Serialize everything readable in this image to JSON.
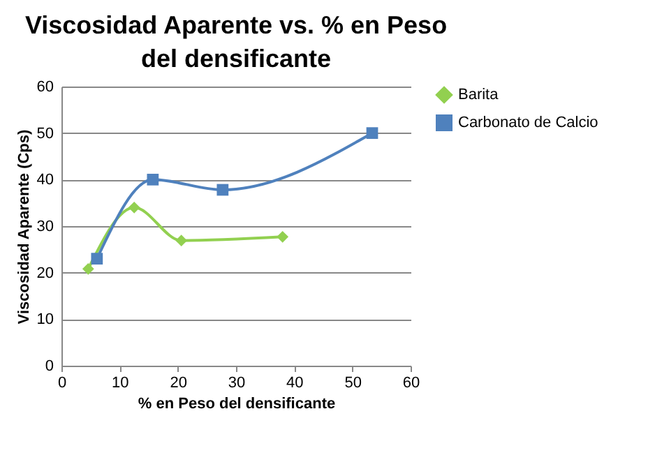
{
  "chart_data": {
    "type": "line",
    "title": "Viscosidad Aparente vs. % en Peso del densificante",
    "xlabel": "% en Peso del densificante",
    "ylabel": "Viscosidad Aparente (Cps)",
    "xlim": [
      0,
      60
    ],
    "xticks": [
      0,
      10,
      20,
      30,
      40,
      50,
      60
    ],
    "ylim": [
      0,
      60
    ],
    "yticks": [
      0,
      10,
      20,
      30,
      40,
      50,
      60
    ],
    "grid": "y",
    "legend": "right",
    "series": [
      {
        "name": "Barita",
        "color": "#92d050",
        "marker": "diamond",
        "x": [
          4.6,
          12.5,
          20.6,
          38
        ],
        "values": [
          20.8,
          34,
          26.9,
          27.7
        ]
      },
      {
        "name": "Carbonato de Calcio",
        "color": "#4f81bd",
        "marker": "square",
        "x": [
          6.1,
          15.7,
          27.7,
          53.4
        ],
        "values": [
          23,
          40,
          37.8,
          50
        ]
      }
    ]
  }
}
